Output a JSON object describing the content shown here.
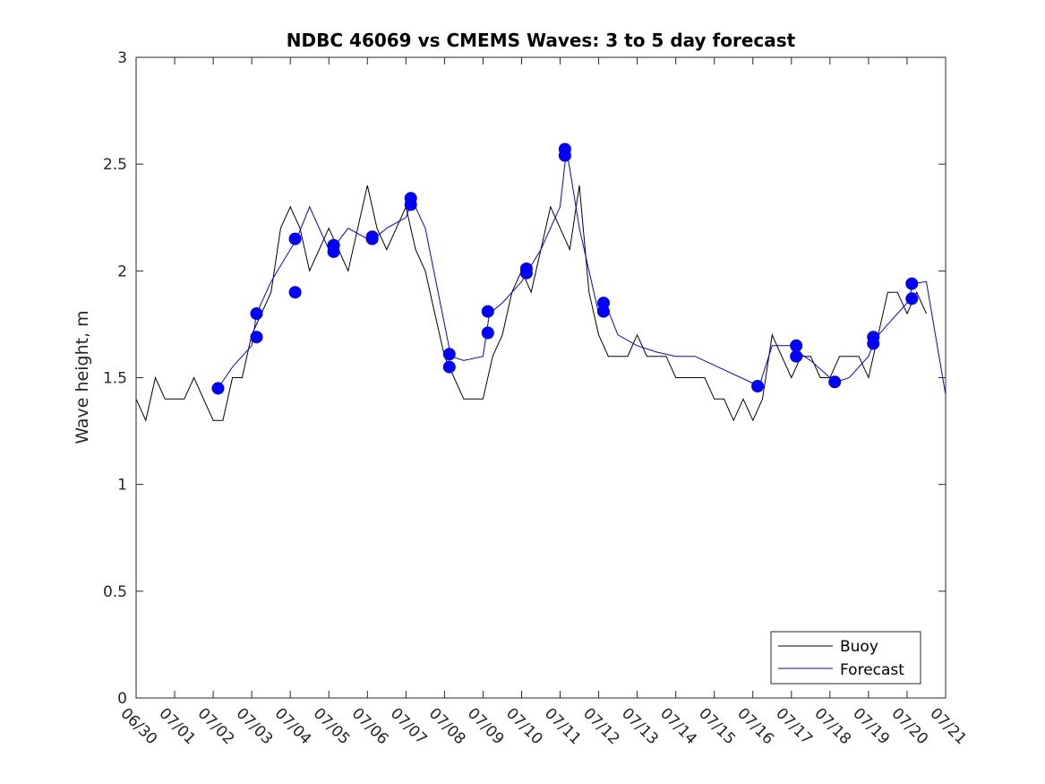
{
  "chart_data": {
    "type": "line",
    "title": "NDBC 46069 vs CMEMS Waves: 3 to 5 day forecast",
    "xlabel": "",
    "ylabel": "Wave height, m",
    "xlim": [
      "06/30",
      "07/21"
    ],
    "ylim": [
      0,
      3
    ],
    "grid": false,
    "legend_position": "bottom-right",
    "x_tick_labels": [
      "06/30",
      "07/01",
      "07/02",
      "07/03",
      "07/04",
      "07/05",
      "07/06",
      "07/07",
      "07/08",
      "07/09",
      "07/10",
      "07/11",
      "07/12",
      "07/13",
      "07/14",
      "07/15",
      "07/16",
      "07/17",
      "07/18",
      "07/19",
      "07/20",
      "07/21"
    ],
    "y_tick_labels": [
      "0",
      "0.5",
      "1",
      "1.5",
      "2",
      "2.5",
      "3"
    ],
    "y_ticks": [
      0,
      0.5,
      1,
      1.5,
      2,
      2.5,
      3
    ],
    "colors": {
      "buoy": "#000000",
      "forecast": "#0000ff"
    },
    "series": [
      {
        "name": "Buoy",
        "color": "#000000",
        "x": [
          "06/30 00:00",
          "06/30 06:00",
          "06/30 12:00",
          "06/30 18:00",
          "07/01 00:00",
          "07/01 06:00",
          "07/01 12:00",
          "07/01 18:00",
          "07/02 00:00",
          "07/02 06:00",
          "07/02 12:00",
          "07/02 18:00",
          "07/03 00:00",
          "07/03 06:00",
          "07/03 12:00",
          "07/03 18:00",
          "07/04 00:00",
          "07/04 06:00",
          "07/04 12:00",
          "07/04 18:00",
          "07/05 00:00",
          "07/05 06:00",
          "07/05 12:00",
          "07/05 18:00",
          "07/06 00:00",
          "07/06 06:00",
          "07/06 12:00",
          "07/06 18:00",
          "07/07 00:00",
          "07/07 06:00",
          "07/07 12:00",
          "07/07 18:00",
          "07/08 00:00",
          "07/08 06:00",
          "07/08 12:00",
          "07/08 18:00",
          "07/09 00:00",
          "07/09 06:00",
          "07/09 12:00",
          "07/09 18:00",
          "07/10 00:00",
          "07/10 06:00",
          "07/10 12:00",
          "07/10 18:00",
          "07/11 00:00",
          "07/11 06:00",
          "07/11 12:00",
          "07/11 18:00",
          "07/12 00:00",
          "07/12 06:00",
          "07/12 12:00",
          "07/12 18:00",
          "07/13 00:00",
          "07/13 06:00",
          "07/13 12:00",
          "07/13 18:00",
          "07/14 00:00",
          "07/14 06:00",
          "07/14 12:00",
          "07/14 18:00",
          "07/15 00:00",
          "07/15 06:00",
          "07/15 12:00",
          "07/15 18:00",
          "07/16 00:00",
          "07/16 06:00",
          "07/16 12:00",
          "07/16 18:00",
          "07/17 00:00",
          "07/17 06:00",
          "07/17 12:00",
          "07/17 18:00",
          "07/18 00:00",
          "07/18 06:00",
          "07/18 12:00",
          "07/18 18:00",
          "07/19 00:00",
          "07/19 06:00",
          "07/19 12:00",
          "07/19 18:00",
          "07/20 00:00",
          "07/20 06:00",
          "07/20 12:00"
        ],
        "y": [
          1.4,
          1.3,
          1.5,
          1.4,
          1.4,
          1.4,
          1.5,
          1.4,
          1.3,
          1.3,
          1.5,
          1.5,
          1.7,
          1.8,
          1.9,
          2.2,
          2.3,
          2.2,
          2.0,
          2.1,
          2.2,
          2.1,
          2.0,
          2.2,
          2.4,
          2.2,
          2.1,
          2.2,
          2.3,
          2.1,
          2.0,
          1.8,
          1.6,
          1.5,
          1.4,
          1.4,
          1.4,
          1.6,
          1.7,
          1.9,
          2.0,
          1.9,
          2.1,
          2.3,
          2.2,
          2.1,
          2.4,
          1.9,
          1.7,
          1.6,
          1.6,
          1.6,
          1.7,
          1.6,
          1.6,
          1.6,
          1.5,
          1.5,
          1.5,
          1.5,
          1.4,
          1.4,
          1.3,
          1.4,
          1.3,
          1.4,
          1.7,
          1.6,
          1.5,
          1.6,
          1.6,
          1.5,
          1.5,
          1.6,
          1.6,
          1.6,
          1.5,
          1.7,
          1.9,
          1.9,
          1.8,
          1.9,
          1.8
        ]
      },
      {
        "name": "Forecast",
        "color": "#0000ff",
        "x": [
          "07/02 03:00",
          "07/02 12:00",
          "07/03 00:00",
          "07/03 03:00",
          "07/03 12:00",
          "07/04 00:00",
          "07/04 04:00",
          "07/04 12:00",
          "07/05 00:00",
          "07/05 04:00",
          "07/05 12:00",
          "07/06 00:00",
          "07/06 04:00",
          "07/06 12:00",
          "07/07 00:00",
          "07/07 04:00",
          "07/07 12:00",
          "07/08 00:00",
          "07/08 04:00",
          "07/08 12:00",
          "07/09 00:00",
          "07/09 04:00",
          "07/09 12:00",
          "07/10 00:00",
          "07/10 04:00",
          "07/10 12:00",
          "07/11 00:00",
          "07/11 04:00",
          "07/11 12:00",
          "07/12 00:00",
          "07/12 04:00",
          "07/12 12:00",
          "07/13 00:00",
          "07/13 12:00",
          "07/14 00:00",
          "07/14 12:00",
          "07/16 04:00",
          "07/16 12:00",
          "07/17 00:00",
          "07/17 04:00",
          "07/17 12:00",
          "07/18 00:00",
          "07/18 04:00",
          "07/18 12:00",
          "07/19 00:00",
          "07/19 04:00",
          "07/19 12:00",
          "07/20 00:00",
          "07/20 04:00",
          "07/20 12:00",
          "07/21 00:00"
        ],
        "y": [
          1.45,
          1.55,
          1.65,
          1.8,
          1.95,
          2.1,
          2.15,
          2.3,
          2.1,
          2.12,
          2.2,
          2.15,
          2.15,
          2.2,
          2.25,
          2.33,
          2.2,
          1.75,
          1.6,
          1.58,
          1.6,
          1.8,
          1.85,
          1.95,
          2.0,
          2.1,
          2.3,
          2.57,
          2.2,
          1.8,
          1.85,
          1.7,
          1.65,
          1.62,
          1.6,
          1.6,
          1.46,
          1.65,
          1.65,
          1.62,
          1.58,
          1.5,
          1.48,
          1.5,
          1.6,
          1.68,
          1.75,
          1.85,
          1.94,
          1.95,
          1.42
        ]
      }
    ],
    "forecast_markers": {
      "name": "Forecast",
      "x": [
        "07/02 03:00",
        "07/03 03:00",
        "07/03 03:00",
        "07/04 03:00",
        "07/04 03:00",
        "07/05 03:00",
        "07/05 03:00",
        "07/06 03:00",
        "07/06 03:00",
        "07/07 03:00",
        "07/07 03:00",
        "07/08 03:00",
        "07/08 03:00",
        "07/09 03:00",
        "07/09 03:00",
        "07/10 03:00",
        "07/10 03:00",
        "07/11 03:00",
        "07/11 03:00",
        "07/12 03:00",
        "07/12 03:00",
        "07/16 03:00",
        "07/17 03:00",
        "07/17 03:00",
        "07/18 03:00",
        "07/19 03:00",
        "07/19 03:00",
        "07/20 03:00",
        "07/20 03:00"
      ],
      "y": [
        1.45,
        1.8,
        1.69,
        2.15,
        1.9,
        2.12,
        2.09,
        2.16,
        2.15,
        2.34,
        2.31,
        1.61,
        1.55,
        1.81,
        1.71,
        2.01,
        1.99,
        2.57,
        2.54,
        1.85,
        1.81,
        1.46,
        1.65,
        1.6,
        1.48,
        1.69,
        1.66,
        1.94,
        1.87
      ]
    }
  },
  "legend": {
    "items": [
      {
        "label": "Buoy",
        "color": "#000000"
      },
      {
        "label": "Forecast",
        "color": "#0000ff"
      }
    ]
  }
}
